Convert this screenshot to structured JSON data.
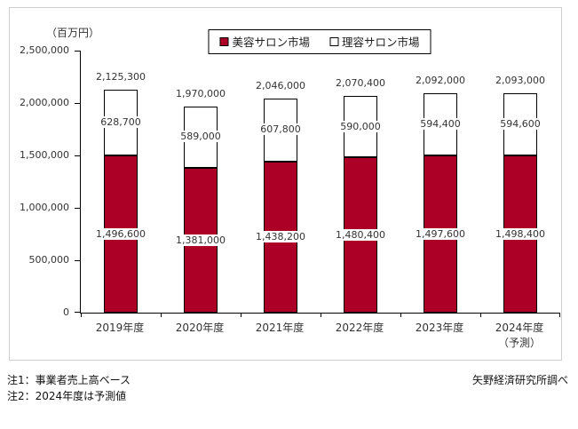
{
  "unit_label": "（百万円）",
  "legend": {
    "items": [
      {
        "label": "美容サロン市場"
      },
      {
        "label": "理容サロン市場"
      }
    ]
  },
  "chart_data": {
    "type": "bar",
    "stacked": true,
    "unit": "百万円",
    "categories": [
      {
        "label": "2019年度",
        "sub": ""
      },
      {
        "label": "2020年度",
        "sub": ""
      },
      {
        "label": "2021年度",
        "sub": ""
      },
      {
        "label": "2022年度",
        "sub": ""
      },
      {
        "label": "2023年度",
        "sub": ""
      },
      {
        "label": "2024年度",
        "sub": "（予測）"
      }
    ],
    "series": [
      {
        "name": "美容サロン市場",
        "color": "#ad0026",
        "values": [
          1496600,
          1381000,
          1438200,
          1480400,
          1497600,
          1498400
        ]
      },
      {
        "name": "理容サロン市場",
        "color": "#ffffff",
        "values": [
          628700,
          589000,
          607800,
          590000,
          594400,
          594600
        ]
      }
    ],
    "totals": [
      2125300,
      1970000,
      2046000,
      2070400,
      2092000,
      2093000
    ],
    "ylim": [
      0,
      2500000
    ],
    "ytick_step": 500000,
    "grid": false,
    "legend_position": "top-center",
    "outline_color": "#000000"
  },
  "footnotes": {
    "note1": "注1：事業者売上高ベース",
    "note2": "注2：2024年度は予測値",
    "source": "矢野経済研究所調べ"
  }
}
